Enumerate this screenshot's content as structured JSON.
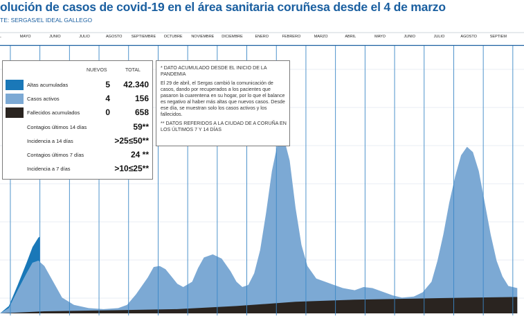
{
  "title": "olución de casos de covid-19 en el área sanitaria coruñesa desde el 4 de marzo",
  "source": "TE: SERGAS/EL IDEAL GALLEGO",
  "legend": {
    "col_new": "NUEVOS",
    "col_total": "TOTAL",
    "rows": [
      {
        "label": "Altas acumuladas",
        "new": "5",
        "total": "42.340",
        "color": "#1a78b8"
      },
      {
        "label": "Casos activos",
        "new": "4",
        "total": "156",
        "color": "#7ca9d4"
      },
      {
        "label": "Fallecidos acumulados",
        "new": "0",
        "total": "658",
        "color": "#2a2420"
      }
    ],
    "extra": [
      {
        "label": "Contagios últimos 14 días",
        "value": "59**"
      },
      {
        "label": "Incidencia a 14 días",
        "value": ">25≤50**"
      },
      {
        "label": "Contagios últimos 7 días",
        "value": "24 **"
      },
      {
        "label": "Incidencia a 7 días",
        "value": ">10≤25**"
      }
    ]
  },
  "note": {
    "p1": "* DATO ACUMULADO DESDE EL INICIO DE LA PANDEMIA",
    "p2": "El 29 de abril, el Sergas cambió la comunicación de casos, dando por recuperados a los pacientes que pasaron la cuarentena en su hogar, por lo que el balance es negativo al haber más altas que nuevos casos. Desde ese día, se muestran solo los casos activos y los fallecidos.",
    "p3": "** DATOS REFERIDOS A LA CIUDAD DE A CORUÑA EN LOS ÚLTIMOS 7 Y 14 DÍAS"
  },
  "chart_data": {
    "type": "area",
    "title": "olución de casos de covid-19 en el área sanitaria coruñesa desde el 4 de marzo",
    "months": [
      "ABRIL",
      "MAYO",
      "JUNIO",
      "JULIO",
      "AGOSTO",
      "SEPTIEMBRE",
      "OCTUBRE",
      "NOVIEMBRE",
      "DICIEMBRE",
      "ENERO",
      "FEBRERO",
      "MARZO",
      "ABRIL",
      "MAYO",
      "JUNIO",
      "JULIO",
      "AGOSTO",
      "SEPTIEM"
    ],
    "x_unit": "months from start of March 2020",
    "grid": true,
    "legend_position": "top-left",
    "colors": {
      "altas": "#1a78b8",
      "activos": "#7ca9d4",
      "fallecidos": "#2a2420",
      "grid": "#3b87c6"
    },
    "ylim": [
      0,
      2
    ],
    "series": [
      {
        "name": "Casos activos",
        "color": "#7ca9d4",
        "x": [
          0,
          0.3,
          0.6,
          0.9,
          1.1,
          1.3,
          1.5,
          1.8,
          2.1,
          2.5,
          3,
          3.5,
          4,
          4.3,
          4.6,
          5,
          5.2,
          5.4,
          5.6,
          5.8,
          6,
          6.2,
          6.5,
          6.7,
          6.9,
          7.2,
          7.5,
          7.8,
          8,
          8.2,
          8.4,
          8.6,
          8.8,
          9,
          9.2,
          9.4,
          9.6,
          9.8,
          10,
          10.2,
          10.4,
          10.7,
          11,
          11.3,
          11.6,
          12,
          12.3,
          12.6,
          13,
          13.3,
          13.6,
          14,
          14.3,
          14.6,
          14.8,
          15,
          15.2,
          15.4,
          15.6,
          15.8,
          16,
          16.2,
          16.4,
          16.6,
          16.8,
          17,
          17.2,
          17.5
        ],
        "y": [
          0,
          0.05,
          0.22,
          0.38,
          0.48,
          0.5,
          0.45,
          0.3,
          0.15,
          0.08,
          0.05,
          0.04,
          0.05,
          0.08,
          0.18,
          0.34,
          0.44,
          0.45,
          0.42,
          0.35,
          0.28,
          0.25,
          0.3,
          0.43,
          0.53,
          0.56,
          0.52,
          0.4,
          0.3,
          0.25,
          0.27,
          0.38,
          0.6,
          0.95,
          1.35,
          1.62,
          1.67,
          1.45,
          1.0,
          0.65,
          0.45,
          0.33,
          0.3,
          0.27,
          0.24,
          0.22,
          0.25,
          0.24,
          0.2,
          0.17,
          0.15,
          0.16,
          0.2,
          0.3,
          0.5,
          0.75,
          1.05,
          1.3,
          1.5,
          1.58,
          1.53,
          1.35,
          1.05,
          0.75,
          0.5,
          0.35,
          0.26,
          0.24
        ]
      },
      {
        "name": "Altas acumuladas",
        "color": "#1a78b8",
        "x": [
          0,
          0.3,
          0.6,
          0.9,
          1.1,
          1.3,
          1.35
        ],
        "y": [
          0,
          0.02,
          0.05,
          0.1,
          0.15,
          0.22,
          0.24
        ]
      },
      {
        "name": "Fallecidos acumulados",
        "color": "#2a2420",
        "x": [
          0,
          1.5,
          4,
          6,
          8,
          10,
          12,
          14,
          16,
          17.5
        ],
        "y": [
          0,
          0.02,
          0.03,
          0.04,
          0.07,
          0.11,
          0.13,
          0.14,
          0.15,
          0.155
        ]
      }
    ]
  }
}
